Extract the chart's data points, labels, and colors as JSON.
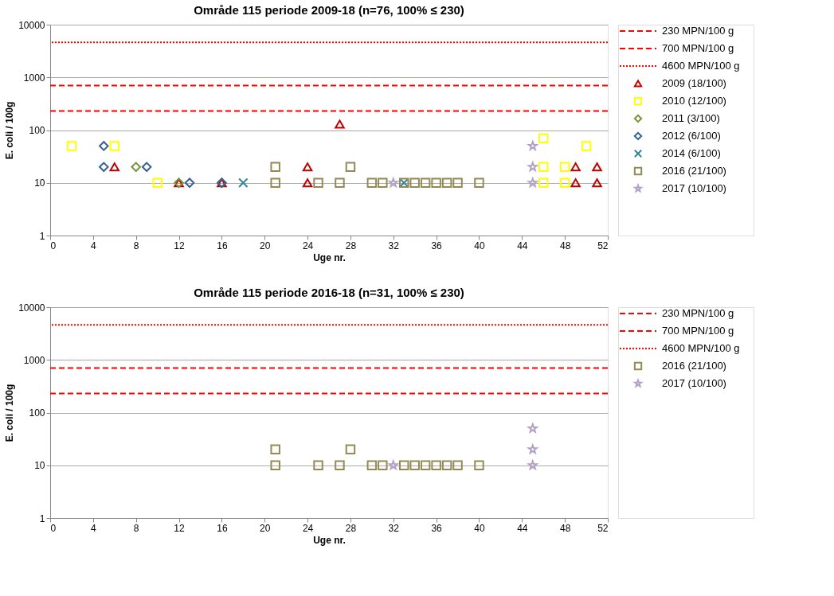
{
  "chart_data": [
    {
      "type": "scatter",
      "title": "Område 115 periode 2009-18 (n=76, 100% ≤ 230)",
      "xlabel": "Uge nr.",
      "ylabel": "E. coli / 100g",
      "xlim": [
        0,
        52
      ],
      "xticks": [
        0,
        4,
        8,
        12,
        16,
        20,
        24,
        28,
        32,
        36,
        40,
        44,
        48,
        52
      ],
      "ylim": [
        1,
        10000
      ],
      "yticks": [
        1,
        10,
        100,
        1000,
        10000
      ],
      "log": "y",
      "grid": "y",
      "legend": "right",
      "ref_lines": [
        {
          "axis": "y",
          "value": 230,
          "label": "230 MPN/100 g",
          "color": "#ff0000",
          "line_style": "dashed"
        },
        {
          "axis": "y",
          "value": 700,
          "label": "700 MPN/100 g",
          "color": "#ff0000",
          "line_style": "dashed"
        },
        {
          "axis": "y",
          "value": 4600,
          "label": "4600 MPN/100 g",
          "color": "#ff0000",
          "line_style": "dotted"
        }
      ],
      "series": [
        {
          "name": "2009 (18/100)",
          "color": "#c00000",
          "marker": "triangle",
          "x": [
            6,
            12,
            16,
            24,
            24,
            27,
            33,
            49,
            49,
            51,
            51
          ],
          "values": [
            20,
            10,
            10,
            20,
            10,
            130,
            null,
            20,
            10,
            20,
            10
          ]
        },
        {
          "name": "2010 (12/100)",
          "color": "#ffff00",
          "marker": "square",
          "x": [
            2,
            6,
            10,
            46,
            46,
            46,
            48,
            48,
            50
          ],
          "values": [
            50,
            50,
            10,
            70,
            20,
            10,
            20,
            10,
            50
          ]
        },
        {
          "name": "2011 (3/100)",
          "color": "#77933c",
          "marker": "diamond",
          "x": [
            8,
            12,
            16
          ],
          "values": [
            20,
            10,
            10
          ]
        },
        {
          "name": "2012 (6/100)",
          "color": "#376092",
          "marker": "diamond",
          "x": [
            5,
            5,
            9,
            13,
            16
          ],
          "values": [
            50,
            20,
            20,
            10,
            10
          ]
        },
        {
          "name": "2014 (6/100)",
          "color": "#31859c",
          "marker": "cross",
          "x": [
            18,
            33
          ],
          "values": [
            10,
            10
          ]
        },
        {
          "name": "2016 (21/100)",
          "color": "#948a54",
          "marker": "square",
          "x": [
            21,
            21,
            25,
            27,
            28,
            30,
            31,
            33,
            34,
            35,
            36,
            37,
            38,
            40
          ],
          "values": [
            20,
            10,
            10,
            10,
            20,
            10,
            10,
            10,
            10,
            10,
            10,
            10,
            10,
            10
          ]
        },
        {
          "name": "2017 (10/100)",
          "color": "#b3a2c7",
          "marker": "star",
          "x": [
            32,
            45,
            45,
            45
          ],
          "values": [
            10,
            50,
            20,
            10
          ]
        }
      ]
    },
    {
      "type": "scatter",
      "title": "Område 115 periode 2016-18 (n=31, 100% ≤ 230)",
      "xlabel": "Uge nr.",
      "ylabel": "E. coli / 100g",
      "xlim": [
        0,
        52
      ],
      "xticks": [
        0,
        4,
        8,
        12,
        16,
        20,
        24,
        28,
        32,
        36,
        40,
        44,
        48,
        52
      ],
      "ylim": [
        1,
        10000
      ],
      "yticks": [
        1,
        10,
        100,
        1000,
        10000
      ],
      "log": "y",
      "grid": "y",
      "legend": "right",
      "ref_lines": [
        {
          "axis": "y",
          "value": 230,
          "label": "230 MPN/100 g",
          "color": "#ff0000",
          "line_style": "dashed"
        },
        {
          "axis": "y",
          "value": 700,
          "label": "700 MPN/100 g",
          "color": "#ff0000",
          "line_style": "dashed"
        },
        {
          "axis": "y",
          "value": 4600,
          "label": "4600 MPN/100 g",
          "color": "#ff0000",
          "line_style": "dotted"
        }
      ],
      "series": [
        {
          "name": "2016 (21/100)",
          "color": "#948a54",
          "marker": "square",
          "x": [
            21,
            21,
            25,
            27,
            28,
            30,
            31,
            33,
            34,
            35,
            36,
            37,
            38,
            40
          ],
          "values": [
            20,
            10,
            10,
            10,
            20,
            10,
            10,
            10,
            10,
            10,
            10,
            10,
            10,
            10
          ]
        },
        {
          "name": "2017 (10/100)",
          "color": "#b3a2c7",
          "marker": "star",
          "x": [
            32,
            45,
            45,
            45
          ],
          "values": [
            10,
            50,
            20,
            10
          ]
        }
      ]
    }
  ]
}
